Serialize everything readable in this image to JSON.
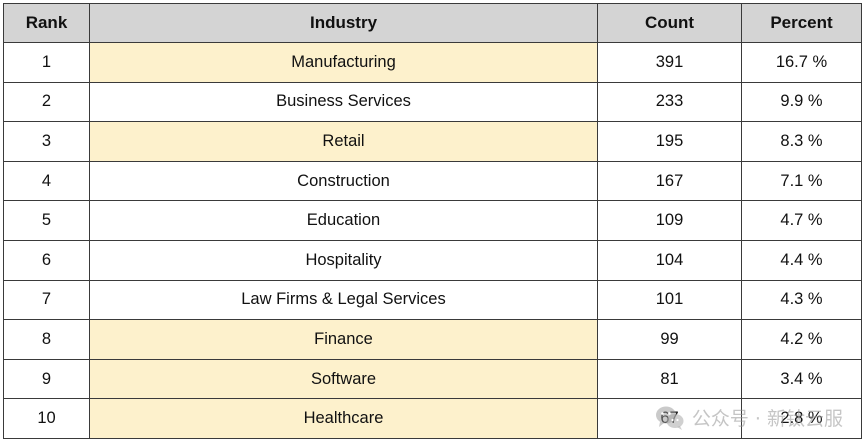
{
  "table": {
    "headers": {
      "rank": "Rank",
      "industry": "Industry",
      "count": "Count",
      "percent": "Percent"
    },
    "rows": [
      {
        "rank": "1",
        "industry": "Manufacturing",
        "count": "391",
        "percent": "16.7 %",
        "highlighted": true
      },
      {
        "rank": "2",
        "industry": "Business Services",
        "count": "233",
        "percent": "9.9 %",
        "highlighted": false
      },
      {
        "rank": "3",
        "industry": "Retail",
        "count": "195",
        "percent": "8.3 %",
        "highlighted": true
      },
      {
        "rank": "4",
        "industry": "Construction",
        "count": "167",
        "percent": "7.1 %",
        "highlighted": false
      },
      {
        "rank": "5",
        "industry": "Education",
        "count": "109",
        "percent": "4.7 %",
        "highlighted": false
      },
      {
        "rank": "6",
        "industry": "Hospitality",
        "count": "104",
        "percent": "4.4 %",
        "highlighted": false
      },
      {
        "rank": "7",
        "industry": "Law Firms & Legal Services",
        "count": "101",
        "percent": "4.3 %",
        "highlighted": false
      },
      {
        "rank": "8",
        "industry": "Finance",
        "count": "99",
        "percent": "4.2 %",
        "highlighted": true
      },
      {
        "rank": "9",
        "industry": "Software",
        "count": "81",
        "percent": "3.4 %",
        "highlighted": true
      },
      {
        "rank": "10",
        "industry": "Healthcare",
        "count": "67",
        "percent": "2.8 %",
        "highlighted": true
      }
    ]
  },
  "colors": {
    "header_bg": "#d4d4d4",
    "highlight_bg": "#fdf1cc",
    "border": "#3a3a3a"
  },
  "watermark": {
    "icon": "wechat-icon",
    "text": "公众号 · 新钛云服"
  }
}
